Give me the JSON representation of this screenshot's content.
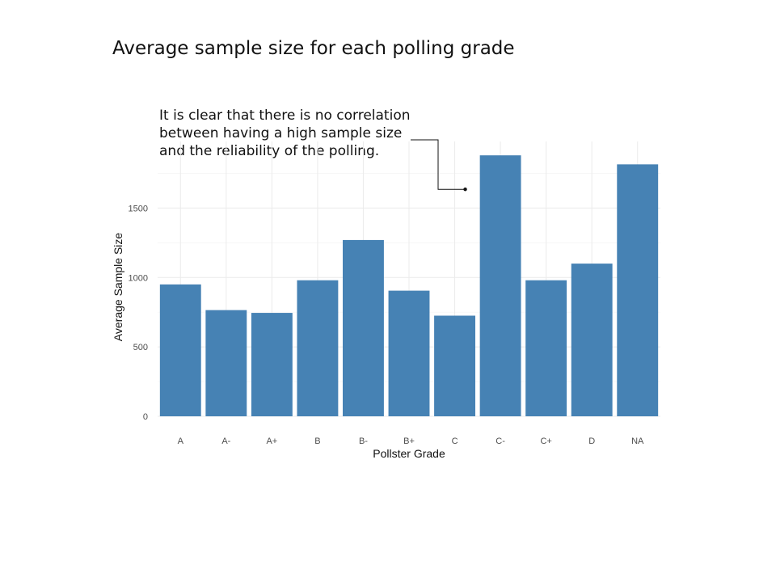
{
  "chart_data": {
    "type": "bar",
    "title": "Average sample size for each polling grade",
    "xlabel": "Pollster Grade",
    "ylabel": "Average Sample Size",
    "categories": [
      "A",
      "A-",
      "A+",
      "B",
      "B-",
      "B+",
      "C",
      "C-",
      "C+",
      "D",
      "NA"
    ],
    "values": [
      950,
      765,
      745,
      980,
      1270,
      905,
      725,
      1880,
      980,
      1100,
      1815
    ],
    "y_ticks": [
      0,
      500,
      1000,
      1500
    ],
    "ylim": [
      0,
      1980
    ],
    "grid": true,
    "bar_color": "#4682b4",
    "annotation": {
      "lines": [
        "It is clear that there is no correlation",
        "between having a high sample size",
        "and the reliability of the polling."
      ],
      "target_category": "C",
      "target_value": 1635
    }
  }
}
